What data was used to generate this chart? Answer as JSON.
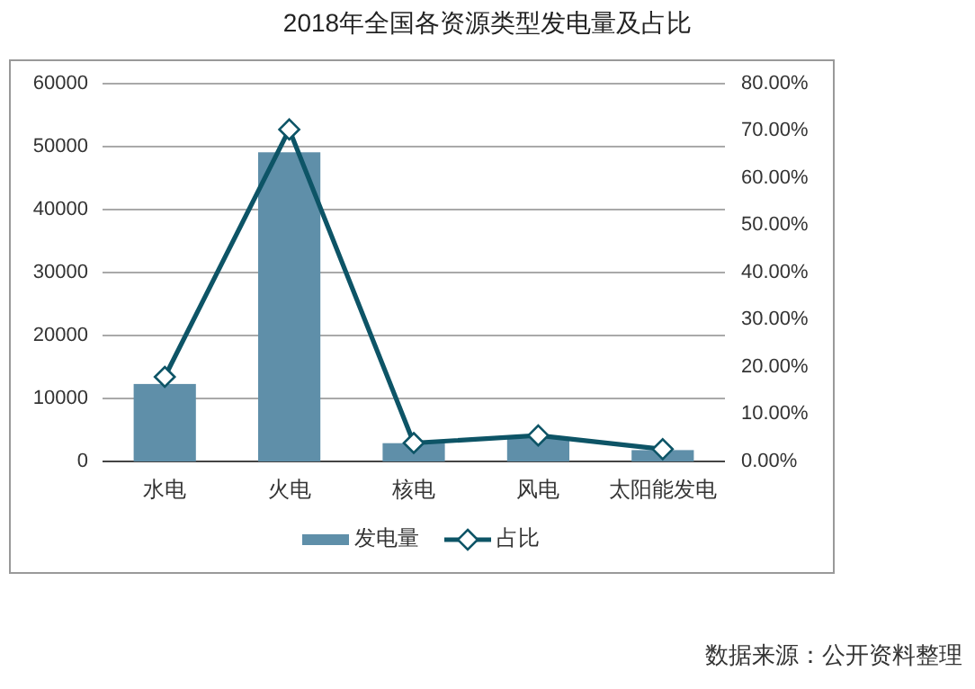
{
  "chart_data": {
    "type": "bar",
    "title": "2018年全国各资源类型发电量及占比",
    "categories": [
      "水电",
      "火电",
      "核电",
      "风电",
      "太阳能发电"
    ],
    "series": [
      {
        "name": "发电量",
        "color": "#5f8fa9",
        "values": [
          12300,
          49100,
          2900,
          3700,
          1800
        ]
      },
      {
        "name": "占比",
        "type": "line",
        "axis": "y2",
        "color": "#0d5466",
        "marker": "diamond",
        "values": [
          17.9,
          70.3,
          3.9,
          5.5,
          2.6
        ]
      }
    ],
    "ylim": [
      0,
      60000
    ],
    "yticks": [
      0,
      10000,
      20000,
      30000,
      40000,
      50000,
      60000
    ],
    "y2lim": [
      0,
      80
    ],
    "y2ticks": [
      {
        "value": 0,
        "label": "0.00%"
      },
      {
        "value": 10,
        "label": "10.00%"
      },
      {
        "value": 20,
        "label": "20.00%"
      },
      {
        "value": 30,
        "label": "30.00%"
      },
      {
        "value": 40,
        "label": "40.00%"
      },
      {
        "value": 50,
        "label": "50.00%"
      },
      {
        "value": 60,
        "label": "60.00%"
      },
      {
        "value": 70,
        "label": "70.00%"
      },
      {
        "value": 80,
        "label": "80.00%"
      }
    ],
    "grid": "y",
    "legend": "bottom",
    "annotations": [
      "数据来源：公开资料整理"
    ]
  }
}
